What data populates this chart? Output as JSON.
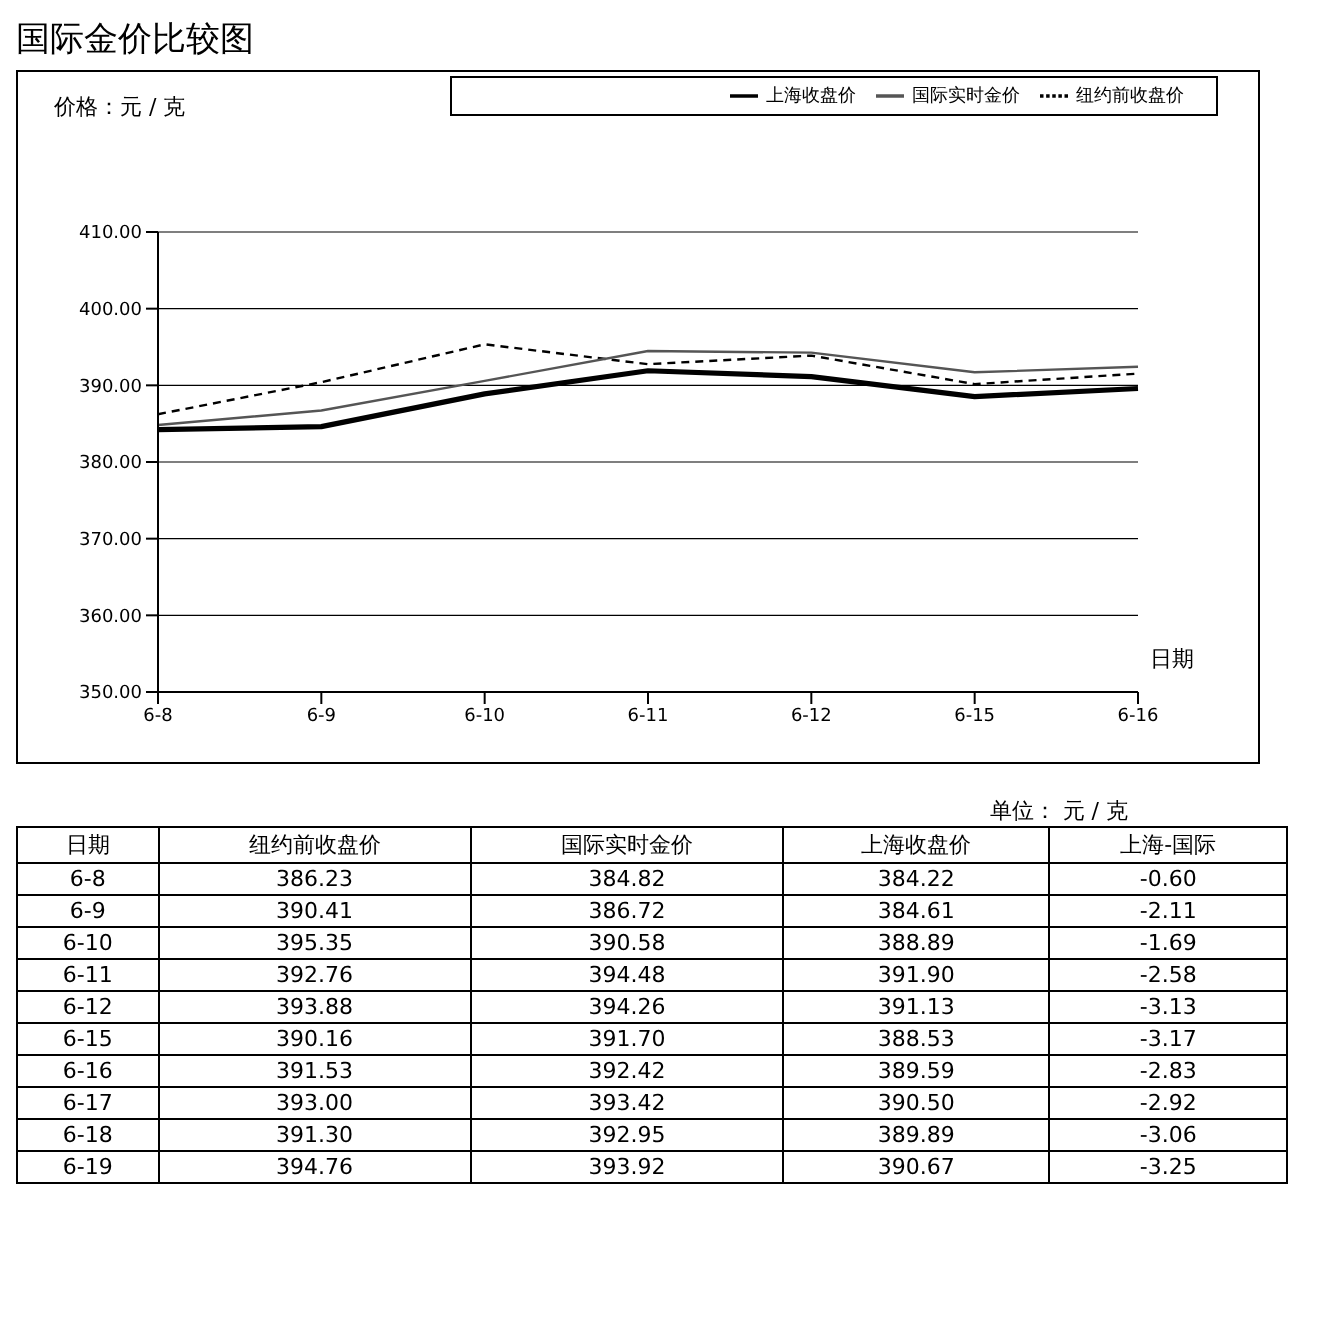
{
  "chart_data": [
    {
      "type": "line",
      "title": "国际金价比较图",
      "ylabel": "价格：元 / 克",
      "xlabel": "日期",
      "categories": [
        "6-8",
        "6-9",
        "6-10",
        "6-11",
        "6-12",
        "6-15",
        "6-16"
      ],
      "series": [
        {
          "name": "纽约前收盘价",
          "color": "#000000",
          "line_style": "dashed",
          "values": [
            386.23,
            390.41,
            395.35,
            392.76,
            393.88,
            390.16,
            391.53
          ]
        },
        {
          "name": "国际实时金价",
          "color": "#555555",
          "line_style": "solid",
          "values": [
            384.82,
            386.72,
            390.58,
            394.48,
            394.26,
            391.7,
            392.42
          ]
        },
        {
          "name": "上海收盘价",
          "color": "#000000",
          "line_style": "solid",
          "values": [
            384.22,
            384.61,
            388.89,
            391.9,
            391.13,
            388.53,
            389.59
          ]
        }
      ],
      "ylim": [
        350,
        410
      ],
      "yticks": [
        {
          "value": 350,
          "label": "350.00"
        },
        {
          "value": 360,
          "label": "360.00"
        },
        {
          "value": 370,
          "label": "370.00"
        },
        {
          "value": 380,
          "label": "380.00"
        },
        {
          "value": 390,
          "label": "390.00"
        },
        {
          "value": 400,
          "label": "400.00"
        },
        {
          "value": 410,
          "label": "410.00"
        }
      ],
      "grid": "y",
      "legend": "top right",
      "marker": "none"
    },
    {
      "type": "other",
      "subtitle": "单位： 元 / 克",
      "xlabel": "日期",
      "categories": [
        "6-8",
        "6-9",
        "6-10",
        "6-11",
        "6-12",
        "6-15",
        "6-16",
        "6-17",
        "6-18",
        "6-19"
      ],
      "series": [
        {
          "name": "纽约前收盘价",
          "values": [
            386.23,
            390.41,
            395.35,
            392.76,
            393.88,
            390.16,
            391.53,
            393.0,
            391.3,
            394.76
          ],
          "value_labels": [
            "386.23",
            "390.41",
            "395.35",
            "392.76",
            "393.88",
            "390.16",
            "391.53",
            "393.00",
            "391.30",
            "394.76"
          ]
        },
        {
          "name": "国际实时金价",
          "values": [
            384.82,
            386.72,
            390.58,
            394.48,
            394.26,
            391.7,
            392.42,
            393.42,
            392.95,
            393.92
          ],
          "value_labels": [
            "384.82",
            "386.72",
            "390.58",
            "394.48",
            "394.26",
            "391.70",
            "392.42",
            "393.42",
            "392.95",
            "393.92"
          ]
        },
        {
          "name": "上海收盘价",
          "values": [
            384.22,
            384.61,
            388.89,
            391.9,
            391.13,
            388.53,
            389.59,
            390.5,
            389.89,
            390.67
          ],
          "value_labels": [
            "384.22",
            "384.61",
            "388.89",
            "391.90",
            "391.13",
            "388.53",
            "389.59",
            "390.50",
            "389.89",
            "390.67"
          ]
        },
        {
          "name": "上海-国际",
          "values": [
            -0.6,
            -2.11,
            -1.69,
            -2.58,
            -3.13,
            -3.17,
            -2.83,
            -2.92,
            -3.06,
            -3.25
          ],
          "value_labels": [
            "-0.60",
            "-2.11",
            "-1.69",
            "-2.58",
            "-3.13",
            "-3.17",
            "-2.83",
            "-2.92",
            "-3.06",
            "-3.25"
          ]
        }
      ]
    }
  ]
}
